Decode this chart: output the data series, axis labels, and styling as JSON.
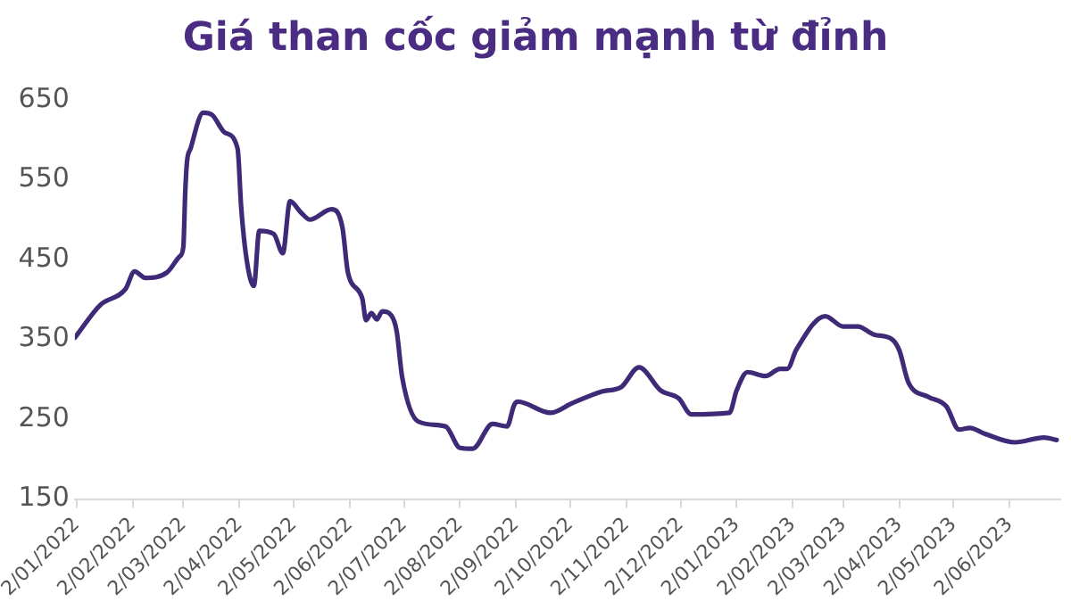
{
  "chart_data": {
    "type": "line",
    "title": "Giá than cốc giảm mạnh từ đỉnh",
    "xlim": [
      "2022-01-01",
      "2023-06-30"
    ],
    "xticks": [
      {
        "value": "2022-01-02",
        "label": "2/01/2022"
      },
      {
        "value": "2022-02-02",
        "label": "2/02/2022"
      },
      {
        "value": "2022-03-02",
        "label": "2/03/2022"
      },
      {
        "value": "2022-04-02",
        "label": "2/04/2022"
      },
      {
        "value": "2022-05-02",
        "label": "2/05/2022"
      },
      {
        "value": "2022-06-02",
        "label": "2/06/2022"
      },
      {
        "value": "2022-07-02",
        "label": "2/07/2022"
      },
      {
        "value": "2022-08-02",
        "label": "2/08/2022"
      },
      {
        "value": "2022-09-02",
        "label": "2/09/2022"
      },
      {
        "value": "2022-10-02",
        "label": "2/10/2022"
      },
      {
        "value": "2022-11-02",
        "label": "2/11/2022"
      },
      {
        "value": "2022-12-02",
        "label": "2/12/2022"
      },
      {
        "value": "2023-01-02",
        "label": "2/01/2023"
      },
      {
        "value": "2023-02-02",
        "label": "2/02/2023"
      },
      {
        "value": "2023-03-02",
        "label": "2/03/2023"
      },
      {
        "value": "2023-04-02",
        "label": "2/04/2023"
      },
      {
        "value": "2023-05-02",
        "label": "2/05/2023"
      },
      {
        "value": "2023-06-02",
        "label": "2/06/2023"
      }
    ],
    "ylim": [
      150,
      650
    ],
    "yticks": [
      150,
      250,
      350,
      450,
      550,
      650
    ],
    "grid": false,
    "legend": false,
    "marker": "none",
    "line_style": "solid",
    "series": [
      {
        "color": "#3f2a78",
        "x": [
          "2022-01-01",
          "2022-01-15",
          "2022-01-29",
          "2022-02-03",
          "2022-02-09",
          "2022-02-21",
          "2022-02-28",
          "2022-03-02",
          "2022-03-03",
          "2022-03-04",
          "2022-03-06",
          "2022-03-13",
          "2022-03-18",
          "2022-03-25",
          "2022-04-01",
          "2022-04-03",
          "2022-04-06",
          "2022-04-10",
          "2022-04-13",
          "2022-04-21",
          "2022-04-26",
          "2022-04-30",
          "2022-05-06",
          "2022-05-11",
          "2022-05-23",
          "2022-05-29",
          "2022-06-01",
          "2022-06-09",
          "2022-06-11",
          "2022-06-14",
          "2022-06-17",
          "2022-06-20",
          "2022-06-25",
          "2022-06-28",
          "2022-07-01",
          "2022-07-10",
          "2022-07-25",
          "2022-08-02",
          "2022-08-09",
          "2022-08-20",
          "2022-08-28",
          "2022-09-01",
          "2022-09-03",
          "2022-09-21",
          "2022-10-03",
          "2022-10-20",
          "2022-10-30",
          "2022-11-09",
          "2022-11-21",
          "2022-12-01",
          "2022-12-08",
          "2022-12-29",
          "2023-01-02",
          "2023-01-08",
          "2023-01-18",
          "2023-01-26",
          "2023-01-30",
          "2023-02-04",
          "2023-02-20",
          "2023-03-02",
          "2023-03-10",
          "2023-03-19",
          "2023-03-29",
          "2023-04-02",
          "2023-04-07",
          "2023-04-18",
          "2023-04-28",
          "2023-05-05",
          "2023-05-11",
          "2023-05-19",
          "2023-06-05",
          "2023-06-21",
          "2023-06-28"
        ],
        "values": [
          352,
          393,
          413,
          435,
          427,
          434,
          454,
          466,
          532,
          572,
          589,
          634,
          631,
          609,
          589,
          515,
          450,
          417,
          486,
          482,
          458,
          523,
          509,
          500,
          513,
          490,
          434,
          401,
          374,
          383,
          375,
          385,
          380,
          360,
          303,
          247,
          241,
          214,
          213,
          244,
          241,
          268,
          272,
          258,
          270,
          285,
          290,
          315,
          286,
          276,
          256,
          258,
          286,
          309,
          304,
          313,
          313,
          337,
          379,
          366,
          366,
          356,
          350,
          336,
          296,
          278,
          266,
          237,
          239,
          232,
          221,
          227,
          224
        ]
      }
    ]
  }
}
